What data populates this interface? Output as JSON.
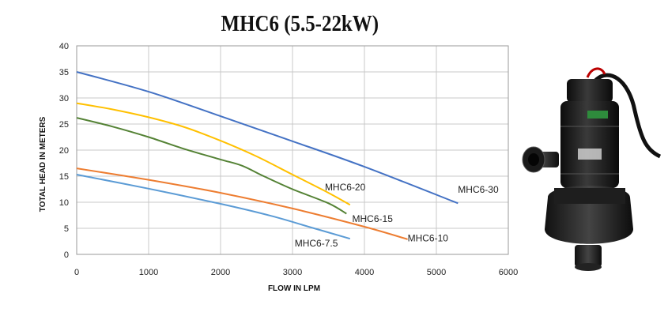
{
  "chart_data": {
    "type": "line",
    "title": "MHC6 (5.5-22kW)",
    "xlabel": "FLOW IN LPM",
    "ylabel": "TOTAL HEAD IN METERS",
    "xlim": [
      0,
      6000
    ],
    "ylim": [
      0,
      40
    ],
    "xticks": [
      "0",
      "1000",
      "2000",
      "3000",
      "4000",
      "5000",
      "6000"
    ],
    "yticks": [
      "0",
      "5",
      "10",
      "15",
      "20",
      "25",
      "30",
      "35",
      "40"
    ],
    "grid": true,
    "legend": "none",
    "series": [
      {
        "name": "MHC6-30",
        "color": "#4472C4",
        "points": [
          [
            0,
            35
          ],
          [
            1000,
            31.2
          ],
          [
            2000,
            26.5
          ],
          [
            3000,
            21.7
          ],
          [
            4000,
            16.8
          ],
          [
            5300,
            9.8
          ]
        ]
      },
      {
        "name": "MHC6-20",
        "color": "#FFC000",
        "points": [
          [
            0,
            29
          ],
          [
            500,
            27.8
          ],
          [
            1000,
            26.3
          ],
          [
            1500,
            24.4
          ],
          [
            2000,
            21.8
          ],
          [
            2500,
            18.8
          ],
          [
            3000,
            15.3
          ],
          [
            3500,
            11.8
          ],
          [
            3800,
            9.5
          ]
        ]
      },
      {
        "name": "MHC6-15",
        "color": "#548235",
        "points": [
          [
            0,
            26.2
          ],
          [
            500,
            24.5
          ],
          [
            1000,
            22.5
          ],
          [
            1500,
            20.2
          ],
          [
            2000,
            18.2
          ],
          [
            2300,
            17.0
          ],
          [
            2600,
            15.0
          ],
          [
            3000,
            12.5
          ],
          [
            3500,
            9.8
          ],
          [
            3750,
            7.8
          ]
        ]
      },
      {
        "name": "MHC6-10",
        "color": "#ED7D31",
        "points": [
          [
            0,
            16.5
          ],
          [
            1000,
            14.3
          ],
          [
            2000,
            11.8
          ],
          [
            3000,
            8.8
          ],
          [
            4000,
            5.3
          ],
          [
            4600,
            2.9
          ]
        ]
      },
      {
        "name": "MHC6-7.5",
        "color": "#5B9BD5",
        "points": [
          [
            0,
            15.3
          ],
          [
            1000,
            12.6
          ],
          [
            2000,
            9.7
          ],
          [
            2700,
            7.4
          ],
          [
            3300,
            5.0
          ],
          [
            3800,
            3.0
          ]
        ]
      }
    ]
  }
}
